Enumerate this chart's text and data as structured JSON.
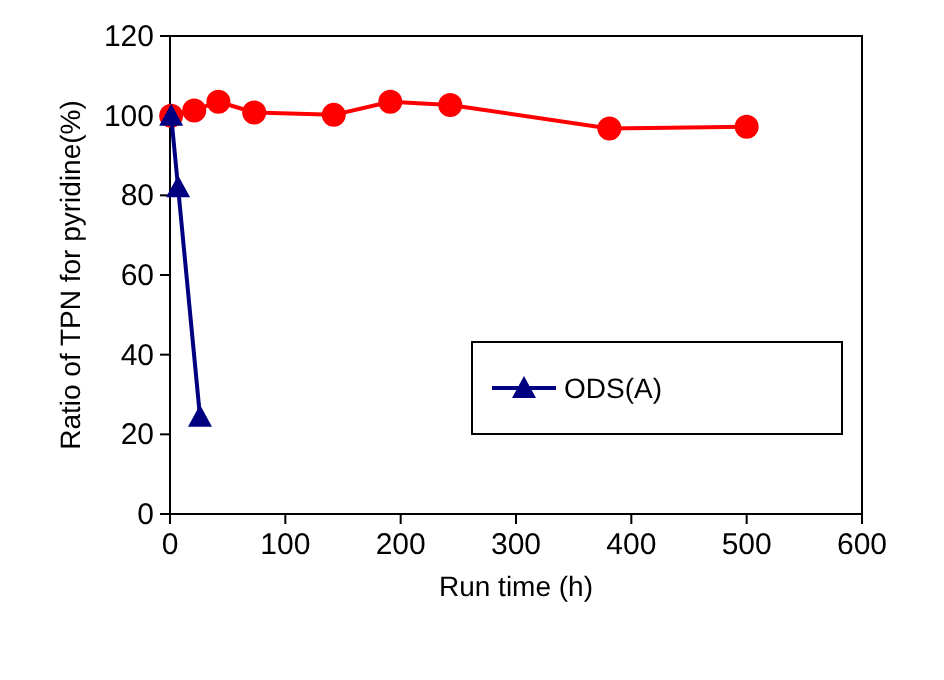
{
  "chart_data": {
    "type": "line",
    "xlabel": "Run time (h)",
    "ylabel": "Ratio of TPN for pyridine(%)",
    "xlim": [
      0,
      600
    ],
    "xticks": [
      0,
      100,
      200,
      300,
      400,
      500,
      600
    ],
    "ylim": [
      0,
      120
    ],
    "yticks": [
      0,
      20,
      40,
      60,
      80,
      100,
      120
    ],
    "legend": "bottom right",
    "series": [
      {
        "color": "#ff0000",
        "marker": "circle",
        "x": [
          1,
          21,
          42,
          73,
          142,
          191,
          243,
          381,
          500
        ],
        "values": [
          100,
          101.3,
          103.5,
          100.8,
          100.2,
          103.5,
          102.7,
          96.8,
          97.2
        ]
      },
      {
        "name": "ODS(A)",
        "color": "#000080",
        "marker": "triangle",
        "x": [
          1,
          7,
          26
        ],
        "values": [
          100,
          82,
          24.4
        ]
      }
    ]
  }
}
